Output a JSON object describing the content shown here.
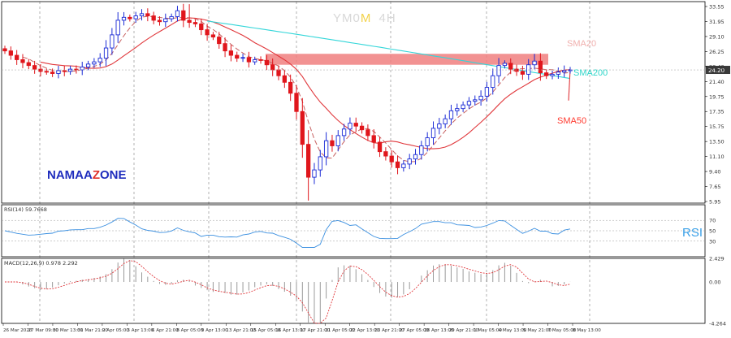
{
  "header": {
    "symbol_part1": "YM0",
    "symbol_part2": "M",
    "timeframe": "4H",
    "symbol_color1": "#d8d8d8",
    "symbol_color2": "#f2d24a",
    "timeframe_color": "#d8d8d8"
  },
  "watermark": {
    "part1": "NAMAA",
    "part2": "Z",
    "part3": "ONE",
    "color_main": "#1f2dbd",
    "color_accent": "#e0302a"
  },
  "labels": {
    "sma20": "SMA20",
    "sma200": "SMA200",
    "sma50": "SMA50",
    "rsi": "RSI"
  },
  "colors": {
    "bull": "#1a2ad6",
    "bear": "#e0161c",
    "sma20": "#c76060",
    "sma50": "#e0373b",
    "sma200": "#33d6d9",
    "zone": "#f07f7f",
    "rsi": "#3a8fe0",
    "macd_signal": "#e0373b",
    "macd_hist": "#9a9a9a",
    "grid": "#888888",
    "sma20_label": "#f0b0ae",
    "sma200_label": "#2fd6c9",
    "sma50_label": "#ff3b30",
    "rsi_label": "#3aa0e8"
  },
  "price_axis": {
    "ticks": [
      "33.55",
      "31.95",
      "29.10",
      "26.25",
      "23.40",
      "21.40",
      "19.75",
      "17.35",
      "15.75",
      "13.50",
      "11.10",
      "9.40",
      "7.65",
      "5.95"
    ],
    "current_price": "24.20",
    "min": 5.95,
    "max": 33.55
  },
  "rsi_panel": {
    "header": "RSI(14) 59.7668",
    "ticks": [
      "70",
      "50",
      "30"
    ],
    "min": 0,
    "max": 100
  },
  "macd_panel": {
    "header": "MACD(12,26,9) 0.978 2.292",
    "ticks": [
      "2.429",
      "0.00",
      "-4.264"
    ],
    "min": -4.264,
    "max": 2.429
  },
  "time_axis": {
    "labels": [
      "26 Mar 2020",
      "27 Mar 09:00",
      "30 Mar 13:00",
      "31 Mar 21:00",
      "2 Apr 05:00",
      "3 Apr 13:00",
      "6 Apr 21:00",
      "8 Apr 05:00",
      "9 Apr 13:00",
      "13 Apr 21:00",
      "15 Apr 05:00",
      "16 Apr 13:00",
      "17 Apr 21:00",
      "21 Apr 05:00",
      "22 Apr 13:00",
      "23 Apr 21:00",
      "27 Apr 05:00",
      "28 Apr 13:00",
      "29 Apr 21:00",
      "1 May 05:00",
      "4 May 13:00",
      "5 May 21:00",
      "7 May 05:00",
      "8 May 13:00"
    ]
  },
  "chart_data": {
    "type": "candlestick",
    "symbol": "YM0M",
    "timeframe": "4H",
    "x": [
      "26 Mar 2020",
      "26 Mar 2020",
      "26 Mar 2020",
      "27 Mar 09:00",
      "27 Mar 09:00",
      "27 Mar 09:00",
      "27 Mar 09:00",
      "27 Mar 09:00",
      "30 Mar 13:00",
      "30 Mar 13:00",
      "30 Mar 13:00",
      "30 Mar 13:00",
      "31 Mar 21:00",
      "31 Mar 21:00",
      "31 Mar 21:00",
      "31 Mar 21:00",
      "2 Apr 05:00",
      "2 Apr 05:00",
      "2 Apr 05:00",
      "2 Apr 05:00",
      "3 Apr 13:00",
      "3 Apr 13:00",
      "3 Apr 13:00",
      "3 Apr 13:00",
      "6 Apr 21:00",
      "6 Apr 21:00",
      "6 Apr 21:00",
      "6 Apr 21:00",
      "8 Apr 05:00",
      "8 Apr 05:00",
      "8 Apr 05:00",
      "8 Apr 05:00",
      "9 Apr 13:00",
      "9 Apr 13:00",
      "9 Apr 13:00",
      "9 Apr 13:00",
      "13 Apr 21:00",
      "13 Apr 21:00",
      "13 Apr 21:00",
      "13 Apr 21:00",
      "15 Apr 05:00",
      "15 Apr 05:00",
      "15 Apr 05:00",
      "15 Apr 05:00",
      "16 Apr 13:00",
      "16 Apr 13:00",
      "16 Apr 13:00",
      "16 Apr 13:00",
      "17 Apr 21:00",
      "17 Apr 21:00",
      "17 Apr 21:00",
      "17 Apr 21:00",
      "21 Apr 05:00",
      "21 Apr 05:00",
      "21 Apr 05:00",
      "21 Apr 05:00",
      "22 Apr 13:00",
      "22 Apr 13:00",
      "22 Apr 13:00",
      "22 Apr 13:00",
      "23 Apr 21:00",
      "23 Apr 21:00",
      "23 Apr 21:00",
      "23 Apr 21:00",
      "27 Apr 05:00",
      "27 Apr 05:00",
      "27 Apr 05:00",
      "27 Apr 05:00",
      "28 Apr 13:00",
      "28 Apr 13:00",
      "28 Apr 13:00",
      "28 Apr 13:00",
      "29 Apr 21:00",
      "29 Apr 21:00",
      "29 Apr 21:00",
      "29 Apr 21:00",
      "1 May 05:00",
      "1 May 05:00",
      "1 May 05:00",
      "1 May 05:00",
      "4 May 13:00",
      "4 May 13:00",
      "4 May 13:00",
      "4 May 13:00",
      "5 May 21:00",
      "5 May 21:00",
      "5 May 21:00",
      "5 May 21:00",
      "7 May 05:00",
      "7 May 05:00",
      "7 May 05:00",
      "7 May 05:00",
      "8 May 13:00",
      "8 May 13:00",
      "8 May 13:00",
      "8 May 13:00"
    ],
    "ohlc_keypoints": [
      {
        "x": "26 Mar 2020",
        "close": 26.8
      },
      {
        "x": "27 Mar 09:00",
        "close": 25.2
      },
      {
        "x": "30 Mar 13:00",
        "close": 23.9
      },
      {
        "x": "31 Mar 21:00",
        "close": 24.3
      },
      {
        "x": "2 Apr 05:00",
        "close": 25.3
      },
      {
        "x": "3 Apr 13:00",
        "close": 31.0
      },
      {
        "x": "6 Apr 21:00",
        "close": 31.6
      },
      {
        "x": "8 Apr 05:00",
        "close": 31.2
      },
      {
        "x": "9 Apr 13:00",
        "close": 30.7
      },
      {
        "x": "13 Apr 21:00",
        "close": 28.7
      },
      {
        "x": "15 Apr 05:00",
        "close": 25.8
      },
      {
        "x": "16 Apr 13:00",
        "close": 25.5
      },
      {
        "x": "17 Apr 21:00",
        "close": 22.5
      },
      {
        "x": "21 Apr 05:00",
        "close": 9.5
      },
      {
        "x": "22 Apr 13:00",
        "close": 14.5
      },
      {
        "x": "23 Apr 21:00",
        "close": 16.9
      },
      {
        "x": "27 Apr 05:00",
        "close": 13.0
      },
      {
        "x": "28 Apr 13:00",
        "close": 10.8
      },
      {
        "x": "29 Apr 21:00",
        "close": 16.2
      },
      {
        "x": "1 May 05:00",
        "close": 18.6
      },
      {
        "x": "4 May 13:00",
        "close": 20.1
      },
      {
        "x": "5 May 21:00",
        "close": 24.8
      },
      {
        "x": "7 May 05:00",
        "close": 23.6
      },
      {
        "x": "8 May 13:00",
        "close": 24.2
      }
    ],
    "resistance_zone": [
      24.9,
      26.4
    ],
    "indicators": [
      "SMA20",
      "SMA50",
      "SMA200",
      "RSI(14)",
      "MACD(12,26,9)"
    ],
    "rsi_last": 59.7668,
    "macd_last": [
      0.978,
      2.292
    ],
    "ylim": [
      5.95,
      33.55
    ],
    "grid": false
  }
}
